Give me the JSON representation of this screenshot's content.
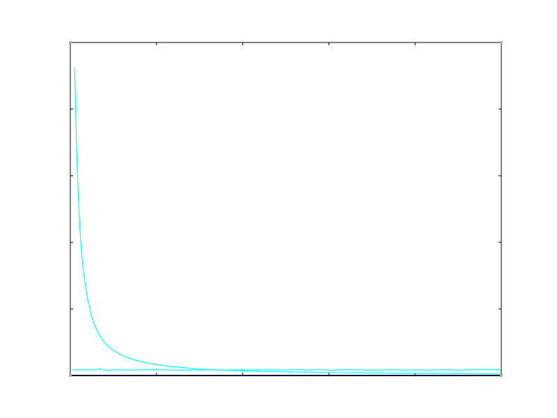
{
  "chart_data": {
    "type": "line",
    "title": "",
    "xlabel": "",
    "ylabel": "",
    "xlim": [
      0,
      100
    ],
    "ylim": [
      0,
      100
    ],
    "grid": false,
    "legend": "none",
    "series": [
      {
        "color": "#00ffff",
        "x": [
          1,
          1.5,
          2,
          2.5,
          3,
          3.5,
          4,
          5,
          6,
          7,
          8,
          10,
          12,
          15,
          18,
          22,
          26,
          30,
          35,
          40,
          45,
          50,
          55,
          60,
          65,
          70,
          75,
          80,
          85,
          90,
          95,
          100
        ],
        "y": [
          92.5,
          66,
          49,
          38.5,
          31.5,
          27,
          23,
          17.5,
          14,
          11.6,
          9.8,
          7.5,
          6,
          4.6,
          3.7,
          2.9,
          2.4,
          1.9,
          1.6,
          1.4,
          1.2,
          1.1,
          1.0,
          0.9,
          0.8,
          0.75,
          0.7,
          0.65,
          0.6,
          0.55,
          0.5,
          0.47
        ]
      },
      {
        "color": "#00ffff",
        "x": [
          0.5,
          3,
          6,
          7,
          8,
          10,
          13,
          16,
          20,
          25,
          30,
          35,
          40,
          45,
          50,
          53,
          55,
          58,
          60,
          63,
          65,
          70,
          73,
          75,
          78,
          80,
          83,
          85,
          88,
          90,
          95,
          100
        ],
        "y": [
          1.7,
          1.7,
          1.7,
          2.0,
          1.6,
          1.7,
          1.65,
          1.7,
          1.75,
          1.6,
          1.7,
          1.65,
          1.7,
          1.7,
          1.65,
          1.75,
          1.6,
          1.8,
          1.55,
          1.7,
          1.75,
          1.6,
          1.7,
          1.75,
          1.6,
          1.7,
          1.6,
          1.7,
          1.75,
          1.6,
          1.8,
          1.7
        ]
      },
      {
        "color": "#00006b",
        "x": [
          0,
          100
        ],
        "y": [
          0,
          0
        ]
      }
    ]
  }
}
